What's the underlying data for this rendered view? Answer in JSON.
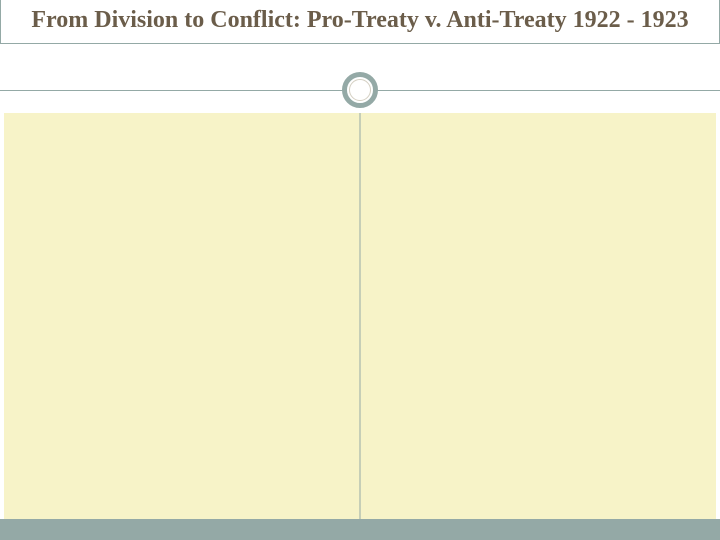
{
  "slide": {
    "title": "From Division to Conflict: Pro-Treaty v. Anti-Treaty 1922 - 1923",
    "layout": {
      "type": "two-column-comparison",
      "title_font_size": 24,
      "title_font_weight": "bold",
      "title_color": "#6b5d4a",
      "accent_color": "#94a9a6",
      "content_background": "#f7f3c8",
      "slide_background": "#ffffff",
      "circle_border_width": 5,
      "bottom_bar_height": 21
    },
    "columns": {
      "left": "",
      "right": ""
    }
  }
}
